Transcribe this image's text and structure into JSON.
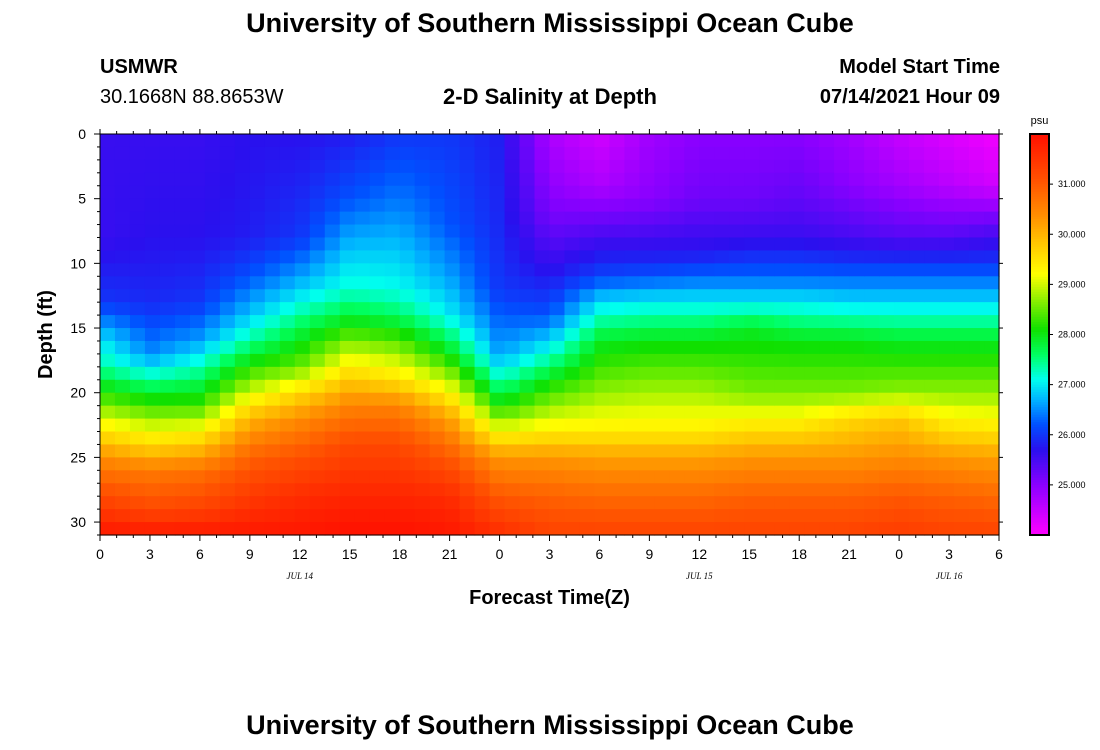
{
  "page": {
    "title": "University of Southern Mississippi Ocean Cube",
    "footer_title": "University of Southern Mississippi Ocean Cube",
    "station": {
      "name": "USMWR",
      "coords": "30.1668N  88.8653W"
    },
    "model": {
      "label": "Model Start Time",
      "datetime": "07/14/2021 Hour 09"
    }
  },
  "chart_data": {
    "type": "heatmap",
    "title": "2-D Salinity at Depth",
    "xlabel": "Forecast Time(Z)",
    "ylabel": "Depth (ft)",
    "units": "psu",
    "x_ticks": [
      "0",
      "3",
      "6",
      "9",
      "12",
      "15",
      "18",
      "21",
      "0",
      "3",
      "6",
      "9",
      "12",
      "15",
      "18",
      "21",
      "0",
      "3",
      "6"
    ],
    "date_labels": [
      {
        "text": "JUL 14",
        "hour": 12
      },
      {
        "text": "JUL 15",
        "hour": 36
      },
      {
        "text": "JUL 16",
        "hour": 51
      }
    ],
    "x_range_hours": [
      0,
      54
    ],
    "y_ticks": [
      0,
      5,
      10,
      15,
      20,
      25,
      30
    ],
    "y_range_ft": [
      0,
      31
    ],
    "colorbar": {
      "range": [
        24.0,
        32.0
      ],
      "ticks": [
        "31.000",
        "30.000",
        "29.000",
        "28.000",
        "27.000",
        "26.000",
        "25.000"
      ],
      "stops": [
        {
          "v": 24.0,
          "c": "#ff00ff"
        },
        {
          "v": 25.0,
          "c": "#8a00ff"
        },
        {
          "v": 25.7,
          "c": "#2a10ee"
        },
        {
          "v": 26.2,
          "c": "#0050ff"
        },
        {
          "v": 26.7,
          "c": "#00b4ff"
        },
        {
          "v": 27.1,
          "c": "#00ffee"
        },
        {
          "v": 27.6,
          "c": "#00ff60"
        },
        {
          "v": 28.1,
          "c": "#10e000"
        },
        {
          "v": 28.7,
          "c": "#90f000"
        },
        {
          "v": 29.2,
          "c": "#ffff00"
        },
        {
          "v": 29.8,
          "c": "#ffc800"
        },
        {
          "v": 30.4,
          "c": "#ff8c00"
        },
        {
          "v": 31.1,
          "c": "#ff5000"
        },
        {
          "v": 32.0,
          "c": "#ff1000"
        }
      ]
    },
    "cols": [
      {
        "t": 0,
        "p": [
          [
            0,
            25.6
          ],
          [
            8,
            25.6
          ],
          [
            13,
            26.0
          ],
          [
            16,
            27.0
          ],
          [
            18,
            27.4
          ],
          [
            20,
            28.2
          ],
          [
            23,
            29.5
          ],
          [
            25,
            30.4
          ],
          [
            28,
            31.2
          ],
          [
            31,
            31.9
          ]
        ]
      },
      {
        "t": 3,
        "p": [
          [
            0,
            25.6
          ],
          [
            8,
            25.7
          ],
          [
            13,
            25.9
          ],
          [
            17,
            26.5
          ],
          [
            19,
            27.4
          ],
          [
            21,
            28.3
          ],
          [
            24,
            29.6
          ],
          [
            26,
            30.6
          ],
          [
            29,
            31.2
          ],
          [
            31,
            31.9
          ]
        ]
      },
      {
        "t": 6,
        "p": [
          [
            0,
            25.6
          ],
          [
            8,
            25.7
          ],
          [
            13,
            26.0
          ],
          [
            16,
            26.6
          ],
          [
            18,
            27.3
          ],
          [
            21,
            28.3
          ],
          [
            24,
            29.8
          ],
          [
            26,
            30.7
          ],
          [
            29,
            31.3
          ],
          [
            31,
            31.9
          ]
        ]
      },
      {
        "t": 9,
        "p": [
          [
            0,
            25.7
          ],
          [
            8,
            25.8
          ],
          [
            11,
            26.2
          ],
          [
            14,
            26.8
          ],
          [
            16,
            27.4
          ],
          [
            18,
            28.2
          ],
          [
            20,
            29.0
          ],
          [
            22,
            30.0
          ],
          [
            25,
            30.9
          ],
          [
            28,
            31.4
          ],
          [
            31,
            31.9
          ]
        ]
      },
      {
        "t": 12,
        "p": [
          [
            0,
            25.7
          ],
          [
            8,
            26.0
          ],
          [
            11,
            26.6
          ],
          [
            13,
            27.1
          ],
          [
            15,
            27.7
          ],
          [
            18,
            28.5
          ],
          [
            20,
            29.6
          ],
          [
            22,
            30.4
          ],
          [
            25,
            31.1
          ],
          [
            28,
            31.6
          ],
          [
            31,
            31.9
          ]
        ]
      },
      {
        "t": 15,
        "p": [
          [
            0,
            25.8
          ],
          [
            5,
            26.2
          ],
          [
            9,
            26.8
          ],
          [
            12,
            27.2
          ],
          [
            14,
            27.8
          ],
          [
            16,
            28.6
          ],
          [
            19,
            29.8
          ],
          [
            21,
            30.5
          ],
          [
            24,
            31.2
          ],
          [
            28,
            31.7
          ],
          [
            31,
            32.0
          ]
        ]
      },
      {
        "t": 18,
        "p": [
          [
            0,
            26.0
          ],
          [
            5,
            26.4
          ],
          [
            9,
            26.8
          ],
          [
            12,
            27.1
          ],
          [
            14,
            27.6
          ],
          [
            16,
            28.4
          ],
          [
            19,
            29.5
          ],
          [
            21,
            30.5
          ],
          [
            24,
            31.2
          ],
          [
            28,
            31.7
          ],
          [
            31,
            32.0
          ]
        ]
      },
      {
        "t": 21,
        "p": [
          [
            0,
            26.0
          ],
          [
            7,
            26.2
          ],
          [
            11,
            26.6
          ],
          [
            14,
            27.0
          ],
          [
            17,
            28.0
          ],
          [
            20,
            29.3
          ],
          [
            22,
            30.2
          ],
          [
            25,
            31.0
          ],
          [
            28,
            31.6
          ],
          [
            31,
            31.9
          ]
        ]
      },
      {
        "t": 24,
        "p": [
          [
            0,
            25.8
          ],
          [
            8,
            25.9
          ],
          [
            12,
            26.0
          ],
          [
            17,
            26.6
          ],
          [
            19,
            27.3
          ],
          [
            21,
            28.1
          ],
          [
            23,
            29.2
          ],
          [
            25,
            30.3
          ],
          [
            28,
            31.0
          ],
          [
            31,
            31.6
          ]
        ]
      },
      {
        "t": 27,
        "p": [
          [
            0,
            24.7
          ],
          [
            6,
            25.1
          ],
          [
            10,
            25.6
          ],
          [
            14,
            26.2
          ],
          [
            17,
            27.2
          ],
          [
            19,
            28.0
          ],
          [
            21,
            28.7
          ],
          [
            23,
            29.4
          ],
          [
            25,
            30.3
          ],
          [
            28,
            30.9
          ],
          [
            31,
            31.3
          ]
        ]
      },
      {
        "t": 30,
        "p": [
          [
            0,
            24.4
          ],
          [
            4,
            24.7
          ],
          [
            8,
            25.5
          ],
          [
            11,
            26.1
          ],
          [
            13,
            26.9
          ],
          [
            16,
            27.9
          ],
          [
            20,
            28.7
          ],
          [
            23,
            29.4
          ],
          [
            25,
            30.2
          ],
          [
            28,
            30.8
          ],
          [
            31,
            31.3
          ]
        ]
      },
      {
        "t": 33,
        "p": [
          [
            0,
            24.8
          ],
          [
            5,
            25.0
          ],
          [
            9,
            25.7
          ],
          [
            11,
            26.2
          ],
          [
            13,
            27.0
          ],
          [
            16,
            28.0
          ],
          [
            20,
            28.8
          ],
          [
            23,
            29.4
          ],
          [
            25,
            30.2
          ],
          [
            28,
            30.8
          ],
          [
            31,
            31.3
          ]
        ]
      },
      {
        "t": 36,
        "p": [
          [
            0,
            25.0
          ],
          [
            5,
            25.2
          ],
          [
            9,
            25.7
          ],
          [
            11,
            26.3
          ],
          [
            13,
            27.0
          ],
          [
            16,
            28.0
          ],
          [
            20,
            28.8
          ],
          [
            23,
            29.4
          ],
          [
            25,
            30.2
          ],
          [
            28,
            30.8
          ],
          [
            31,
            31.3
          ]
        ]
      },
      {
        "t": 39,
        "p": [
          [
            0,
            25.0
          ],
          [
            5,
            25.2
          ],
          [
            8,
            25.6
          ],
          [
            11,
            26.3
          ],
          [
            13,
            27.0
          ],
          [
            15,
            27.9
          ],
          [
            20,
            28.6
          ],
          [
            23,
            29.6
          ],
          [
            25,
            30.3
          ],
          [
            28,
            30.9
          ],
          [
            31,
            31.3
          ]
        ]
      },
      {
        "t": 42,
        "p": [
          [
            0,
            25.0
          ],
          [
            5,
            25.3
          ],
          [
            8,
            25.6
          ],
          [
            11,
            26.3
          ],
          [
            13,
            27.0
          ],
          [
            16,
            28.0
          ],
          [
            20,
            28.6
          ],
          [
            23,
            29.6
          ],
          [
            25,
            30.3
          ],
          [
            28,
            30.9
          ],
          [
            31,
            31.3
          ]
        ]
      },
      {
        "t": 45,
        "p": [
          [
            0,
            24.8
          ],
          [
            4,
            25.0
          ],
          [
            8,
            25.5
          ],
          [
            10,
            26.0
          ],
          [
            13,
            26.9
          ],
          [
            16,
            28.0
          ],
          [
            20,
            28.6
          ],
          [
            22,
            29.6
          ],
          [
            25,
            30.3
          ],
          [
            28,
            30.9
          ],
          [
            31,
            31.3
          ]
        ]
      },
      {
        "t": 48,
        "p": [
          [
            0,
            24.5
          ],
          [
            4,
            24.8
          ],
          [
            8,
            25.4
          ],
          [
            10,
            26.0
          ],
          [
            13,
            26.9
          ],
          [
            16,
            27.9
          ],
          [
            20,
            28.7
          ],
          [
            22,
            29.8
          ],
          [
            25,
            30.4
          ],
          [
            28,
            31.0
          ],
          [
            31,
            31.4
          ]
        ]
      },
      {
        "t": 51,
        "p": [
          [
            0,
            24.3
          ],
          [
            4,
            24.6
          ],
          [
            8,
            25.4
          ],
          [
            10,
            26.0
          ],
          [
            13,
            26.9
          ],
          [
            16,
            27.9
          ],
          [
            20,
            28.7
          ],
          [
            23,
            29.6
          ],
          [
            25,
            30.3
          ],
          [
            28,
            30.9
          ],
          [
            31,
            31.3
          ]
        ]
      },
      {
        "t": 54,
        "p": [
          [
            0,
            24.1
          ],
          [
            4,
            24.4
          ],
          [
            7,
            25.3
          ],
          [
            10,
            26.0
          ],
          [
            13,
            26.9
          ],
          [
            16,
            27.9
          ],
          [
            20,
            28.7
          ],
          [
            23,
            29.5
          ],
          [
            25,
            30.2
          ],
          [
            28,
            30.8
          ],
          [
            31,
            31.3
          ]
        ]
      }
    ]
  }
}
